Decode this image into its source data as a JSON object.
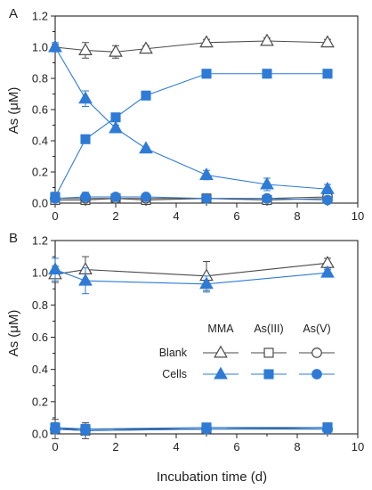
{
  "colors": {
    "blank": "#4a4a4a",
    "cells": "#2e7bd6",
    "axis": "#222222"
  },
  "chart_data": [
    {
      "type": "line",
      "panel_label": "A",
      "ylabel": "As (μM)",
      "xlabel": "",
      "xlim": [
        0,
        10
      ],
      "ylim": [
        0,
        1.2
      ],
      "xticks": [
        "0",
        "2",
        "4",
        "6",
        "8",
        "10"
      ],
      "yticks": [
        "0.0",
        "0.2",
        "0.4",
        "0.6",
        "0.8",
        "1.0",
        "1.2"
      ],
      "series": [
        {
          "group": "Blank",
          "species": "MMA",
          "marker": "triangle",
          "filled": false,
          "x": [
            0,
            1,
            2,
            3,
            5,
            7,
            9
          ],
          "y": [
            1.0,
            0.98,
            0.97,
            0.99,
            1.03,
            1.04,
            1.03
          ],
          "err": [
            0.02,
            0.05,
            0.04,
            0.02,
            0.02,
            0.02,
            0.02
          ]
        },
        {
          "group": "Blank",
          "species": "As(III)",
          "marker": "square",
          "filled": false,
          "x": [
            0,
            1,
            2,
            3,
            5,
            7,
            9
          ],
          "y": [
            0.02,
            0.02,
            0.03,
            0.02,
            0.03,
            0.02,
            0.03
          ],
          "err": [
            0.02,
            0.02,
            0.01,
            0.01,
            0.01,
            0.01,
            0.01
          ]
        },
        {
          "group": "Blank",
          "species": "As(V)",
          "marker": "circle",
          "filled": false,
          "x": [
            0,
            1,
            2,
            3,
            5,
            7,
            9
          ],
          "y": [
            0.03,
            0.03,
            0.03,
            0.03,
            0.03,
            0.03,
            0.04
          ],
          "err": [
            0.01,
            0.01,
            0.01,
            0.01,
            0.01,
            0.01,
            0.01
          ]
        },
        {
          "group": "Cells",
          "species": "MMA",
          "marker": "triangle",
          "filled": true,
          "x": [
            0,
            1,
            2,
            3,
            5,
            7,
            9
          ],
          "y": [
            1.0,
            0.67,
            0.48,
            0.35,
            0.18,
            0.12,
            0.09
          ],
          "err": [
            0.03,
            0.05,
            0.02,
            0.01,
            0.03,
            0.04,
            0.03
          ]
        },
        {
          "group": "Cells",
          "species": "As(III)",
          "marker": "square",
          "filled": true,
          "x": [
            0,
            1,
            2,
            3,
            5,
            7,
            9
          ],
          "y": [
            0.04,
            0.41,
            0.55,
            0.69,
            0.83,
            0.83,
            0.83
          ],
          "err": [
            0.03,
            0.01,
            0.01,
            0.01,
            0.01,
            0.01,
            0.01
          ]
        },
        {
          "group": "Cells",
          "species": "As(V)",
          "marker": "circle",
          "filled": true,
          "x": [
            0,
            1,
            2,
            3,
            5,
            7,
            9
          ],
          "y": [
            0.03,
            0.04,
            0.04,
            0.04,
            0.03,
            0.03,
            0.02
          ],
          "err": [
            0.02,
            0.03,
            0.01,
            0.02,
            0.01,
            0.01,
            0.01
          ]
        }
      ]
    },
    {
      "type": "line",
      "panel_label": "B",
      "ylabel": "As (μM)",
      "xlabel": "Incubation time (d)",
      "xlim": [
        0,
        10
      ],
      "ylim": [
        0,
        1.2
      ],
      "xticks": [
        "0",
        "2",
        "4",
        "6",
        "8",
        "10"
      ],
      "yticks": [
        "0.0",
        "0.2",
        "0.4",
        "0.6",
        "0.8",
        "1.0",
        "1.2"
      ],
      "series": [
        {
          "group": "Blank",
          "species": "MMA",
          "marker": "triangle",
          "filled": false,
          "x": [
            0,
            1,
            5,
            9
          ],
          "y": [
            0.99,
            1.02,
            0.98,
            1.06
          ],
          "err": [
            0.05,
            0.08,
            0.09,
            0.03
          ]
        },
        {
          "group": "Blank",
          "species": "As(III)",
          "marker": "square",
          "filled": false,
          "x": [
            0,
            1,
            5,
            9
          ],
          "y": [
            0.03,
            0.02,
            0.03,
            0.04
          ],
          "err": [
            0.06,
            0.05,
            0.02,
            0.01
          ]
        },
        {
          "group": "Blank",
          "species": "As(V)",
          "marker": "circle",
          "filled": false,
          "x": [
            0,
            1,
            5,
            9
          ],
          "y": [
            0.03,
            0.03,
            0.03,
            0.03
          ],
          "err": [
            0.02,
            0.02,
            0.02,
            0.01
          ]
        },
        {
          "group": "Cells",
          "species": "MMA",
          "marker": "triangle",
          "filled": true,
          "x": [
            0,
            1,
            5,
            9
          ],
          "y": [
            1.02,
            0.95,
            0.93,
            1.0
          ],
          "err": [
            0.07,
            0.08,
            0.05,
            0.02
          ]
        },
        {
          "group": "Cells",
          "species": "As(III)",
          "marker": "square",
          "filled": true,
          "x": [
            0,
            1,
            5,
            9
          ],
          "y": [
            0.04,
            0.03,
            0.04,
            0.04
          ],
          "err": [
            0.03,
            0.03,
            0.01,
            0.01
          ]
        },
        {
          "group": "Cells",
          "species": "As(V)",
          "marker": "circle",
          "filled": true,
          "x": [
            0,
            1,
            5,
            9
          ],
          "y": [
            0.03,
            0.02,
            0.03,
            0.03
          ],
          "err": [
            0.02,
            0.02,
            0.01,
            0.01
          ]
        }
      ]
    }
  ],
  "legend": {
    "columns": [
      "MMA",
      "As(III)",
      "As(V)"
    ],
    "rows": [
      "Blank",
      "Cells"
    ]
  }
}
